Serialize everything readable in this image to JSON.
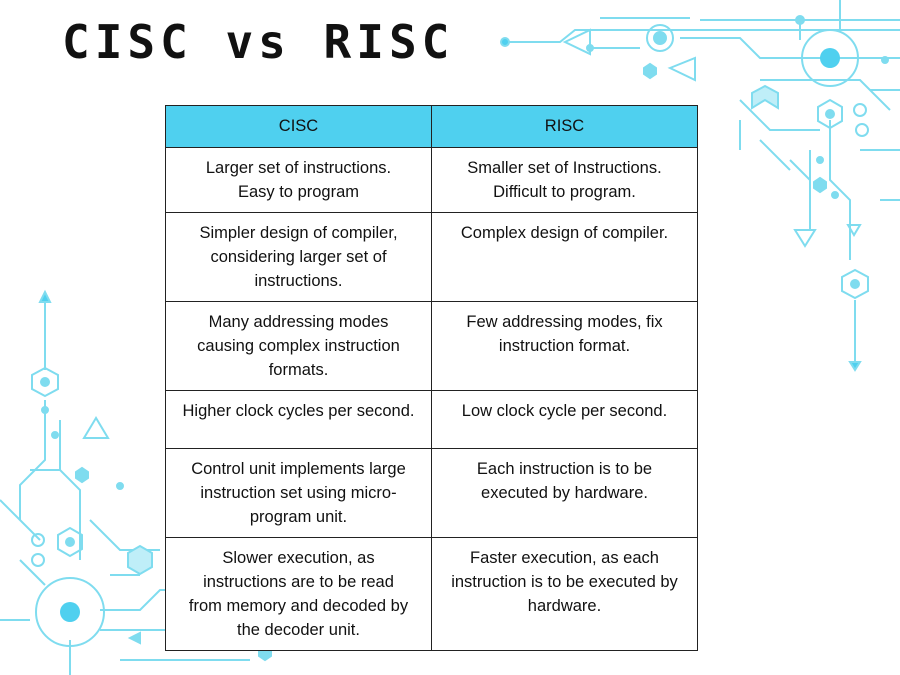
{
  "slide": {
    "title": "CISC vs RISC",
    "accent_color": "#4fd0ef",
    "decoration_color": "#7fdcef"
  },
  "table": {
    "headers": [
      "CISC",
      "RISC"
    ],
    "rows": [
      [
        "Larger set of instructions.\nEasy to program",
        "Smaller set of Instructions.\nDifficult to program."
      ],
      [
        "Simpler design of compiler,\nconsidering larger set of\ninstructions.",
        "Complex design of compiler."
      ],
      [
        "Many addressing modes\ncausing complex instruction\nformats.",
        "Few addressing modes, fix\ninstruction format."
      ],
      [
        "Higher clock cycles per second.",
        "Low clock cycle per second."
      ],
      [
        "Control unit implements large\ninstruction set using micro-\nprogram unit.",
        "Each instruction is to be\nexecuted by hardware."
      ],
      [
        "Slower execution, as\ninstructions are to be read\nfrom memory and decoded by\nthe decoder unit.",
        "Faster execution, as each\ninstruction is to be executed by\nhardware."
      ]
    ]
  }
}
